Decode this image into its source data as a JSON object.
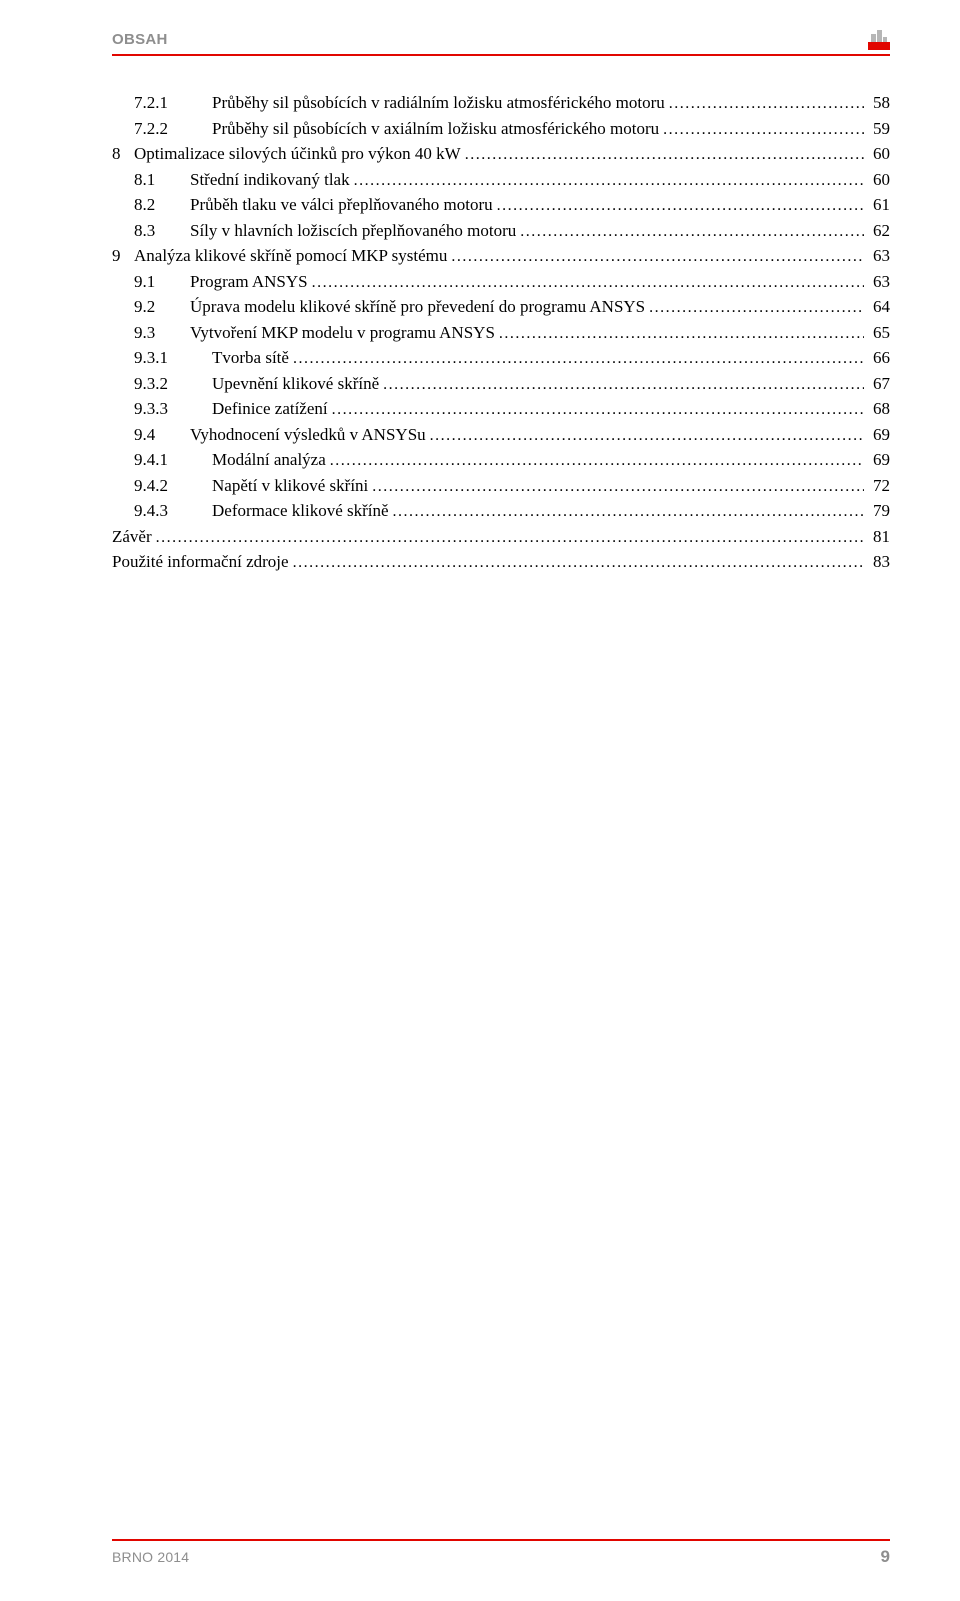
{
  "header": {
    "title": "OBSAH"
  },
  "footer": {
    "left": "BRNO 2014",
    "page": "9"
  },
  "colors": {
    "accent": "#e10600",
    "muted_text": "#8e8e8e",
    "body_text": "#000000",
    "background": "#ffffff"
  },
  "typography": {
    "body_font": "Times New Roman",
    "header_font": "Arial",
    "body_size_pt": 12,
    "header_size_pt": 11,
    "footer_left_size_pt": 10,
    "footer_page_size_pt": 13
  },
  "toc": {
    "leader_char": ".",
    "entries": [
      {
        "indent": 2,
        "num": "7.2.1",
        "label": "Průběhy sil působících v radiálním ložisku atmosférického motoru",
        "page": "58"
      },
      {
        "indent": 2,
        "num": "7.2.2",
        "label": "Průběhy sil působících v axiálním ložisku atmosférického motoru",
        "page": "59"
      },
      {
        "indent": 0,
        "num": "8",
        "label": "Optimalizace silových účinků pro výkon 40 kW",
        "page": "60"
      },
      {
        "indent": 1,
        "num": "8.1",
        "label": "Střední indikovaný tlak",
        "page": "60"
      },
      {
        "indent": 1,
        "num": "8.2",
        "label": "Průběh tlaku ve válci přeplňovaného motoru",
        "page": "61"
      },
      {
        "indent": 1,
        "num": "8.3",
        "label": "Síly v hlavních ložiscích přeplňovaného motoru",
        "page": "62"
      },
      {
        "indent": 0,
        "num": "9",
        "label": "Analýza klikové skříně pomocí MKP systému",
        "page": "63"
      },
      {
        "indent": 1,
        "num": "9.1",
        "label": "Program ANSYS",
        "page": "63"
      },
      {
        "indent": 1,
        "num": "9.2",
        "label": "Úprava modelu klikové skříně pro převedení do programu ANSYS",
        "page": "64"
      },
      {
        "indent": 1,
        "num": "9.3",
        "label": "Vytvoření MKP modelu v programu ANSYS",
        "page": "65"
      },
      {
        "indent": 2,
        "num": "9.3.1",
        "label": "Tvorba sítě",
        "page": "66"
      },
      {
        "indent": 2,
        "num": "9.3.2",
        "label": "Upevnění klikové skříně",
        "page": "67"
      },
      {
        "indent": 2,
        "num": "9.3.3",
        "label": "Definice zatížení",
        "page": "68"
      },
      {
        "indent": 1,
        "num": "9.4",
        "label": "Vyhodnocení výsledků v ANSYSu",
        "page": "69"
      },
      {
        "indent": 2,
        "num": "9.4.1",
        "label": "Modální analýza",
        "page": "69"
      },
      {
        "indent": 2,
        "num": "9.4.2",
        "label": "Napětí v klikové skříni",
        "page": "72"
      },
      {
        "indent": 2,
        "num": "9.4.3",
        "label": "Deformace klikové skříně",
        "page": "79"
      },
      {
        "indent": -1,
        "num": "",
        "label": "Závěr",
        "page": "81"
      },
      {
        "indent": -1,
        "num": "",
        "label": "Použité informační zdroje",
        "page": "83"
      }
    ]
  }
}
